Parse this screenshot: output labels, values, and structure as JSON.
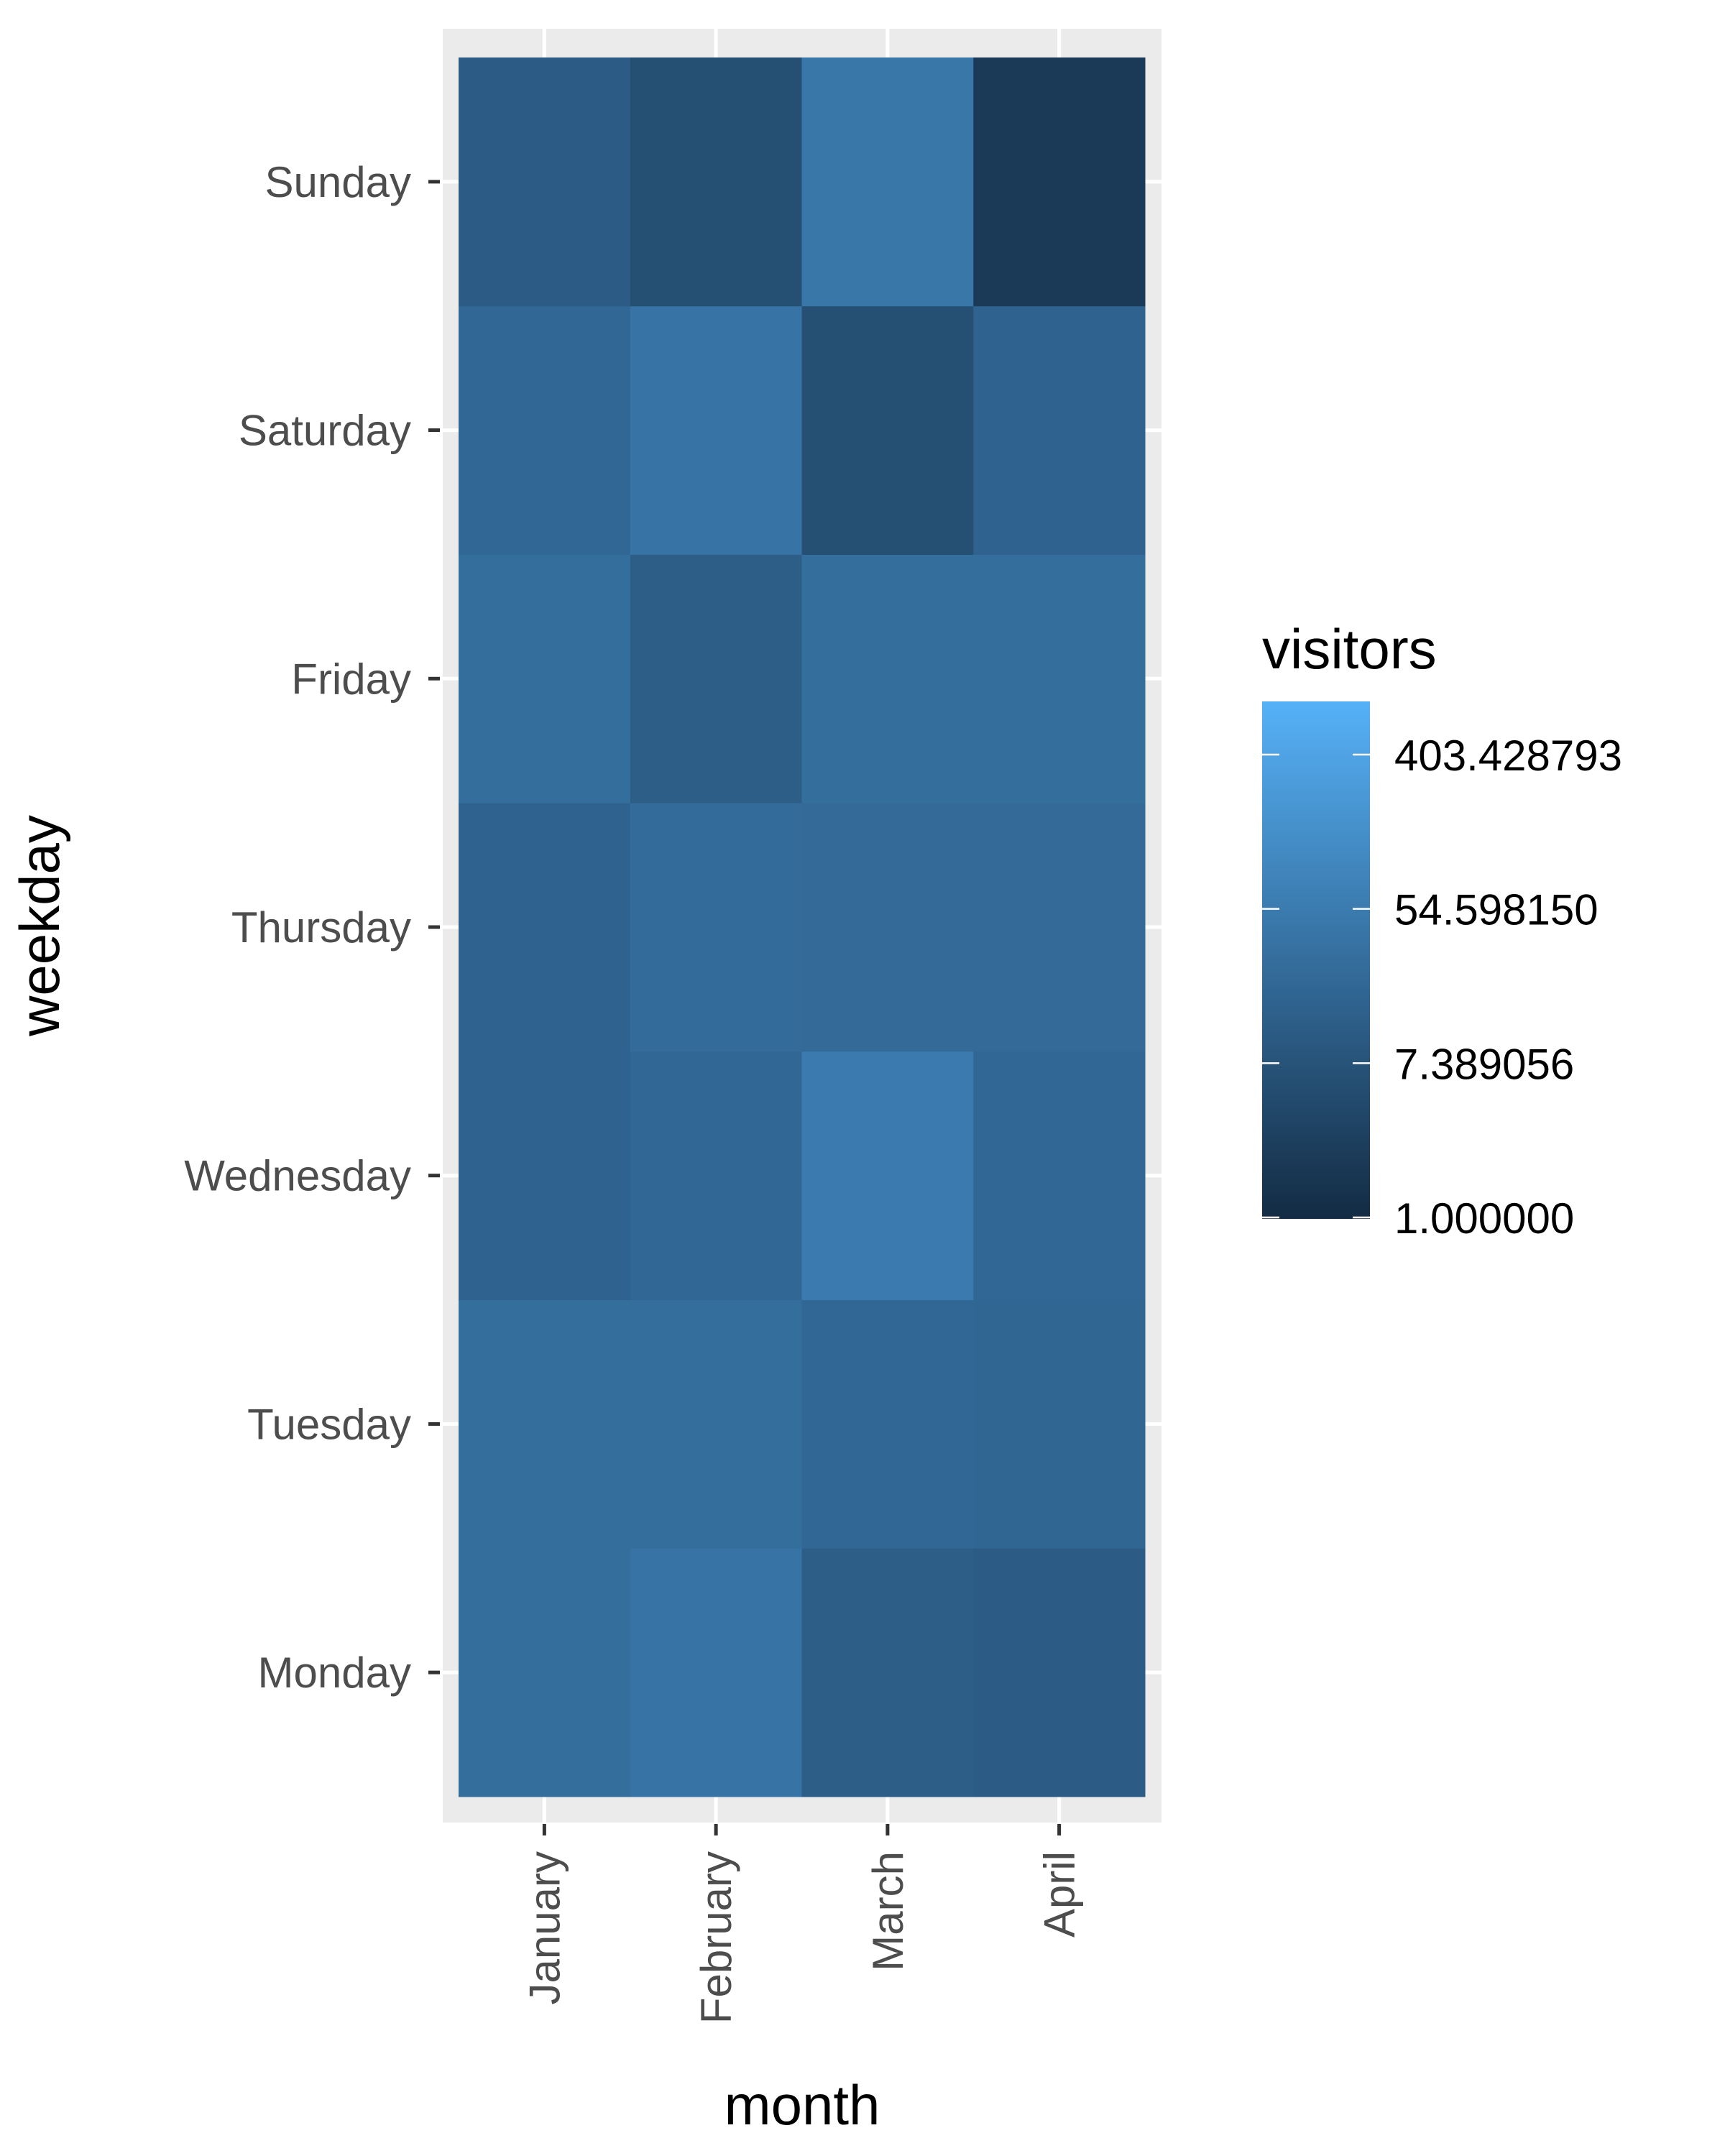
{
  "chart_data": {
    "type": "heatmap",
    "xlabel": "month",
    "ylabel": "weekday",
    "x_categories": [
      "January",
      "February",
      "March",
      "April"
    ],
    "y_categories": [
      "Monday",
      "Tuesday",
      "Wednesday",
      "Thursday",
      "Friday",
      "Saturday",
      "Sunday"
    ],
    "color_scale": {
      "name": "visitors",
      "type": "log",
      "min": 1.0,
      "max": 403.428793,
      "breaks": [
        1.0,
        7.389056,
        54.59815,
        403.428793
      ],
      "break_labels": [
        "1.000000",
        "7.389056",
        "54.598150",
        "403.428793"
      ],
      "low_color": "#132B43",
      "high_color": "#56B1F7"
    },
    "values": [
      {
        "weekday": "Monday",
        "cells": [
          20,
          25,
          10,
          9
        ]
      },
      {
        "weekday": "Tuesday",
        "cells": [
          20,
          20,
          15,
          14
        ]
      },
      {
        "weekday": "Wednesday",
        "cells": [
          12,
          15,
          35,
          15
        ]
      },
      {
        "weekday": "Thursday",
        "cells": [
          12,
          18,
          17,
          17
        ]
      },
      {
        "weekday": "Friday",
        "cells": [
          20,
          10,
          20,
          20
        ]
      },
      {
        "weekday": "Saturday",
        "cells": [
          15,
          25,
          5,
          12
        ]
      },
      {
        "weekday": "Sunday",
        "cells": [
          9,
          5,
          30,
          2
        ]
      }
    ],
    "grid": true,
    "legend_position": "right"
  }
}
